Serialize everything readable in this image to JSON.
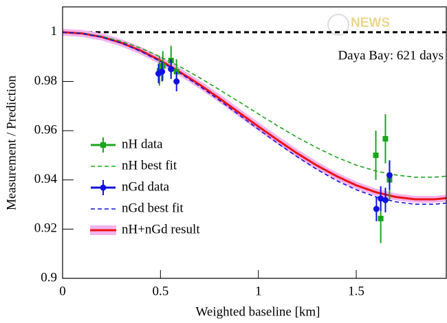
{
  "chart_data": {
    "type": "line",
    "annotation": "Daya Bay: 621 days",
    "watermark": "NEWS",
    "xlabel": "Weighted baseline [km]",
    "ylabel": "Measurement / Prediction",
    "xlim": [
      0,
      1.96
    ],
    "ylim": [
      0.9,
      1.0103
    ],
    "xticks": [
      0,
      0.5,
      1,
      1.5
    ],
    "yticks": [
      0.9,
      0.92,
      0.94,
      0.96,
      0.98,
      1
    ],
    "reference_line": 1,
    "series": [
      {
        "name": "nH data",
        "color": "#1aa51a",
        "style": "points",
        "marker": "square",
        "x": [
          0.495,
          0.512,
          0.554,
          0.582,
          1.6,
          1.625,
          1.649,
          1.67
        ],
        "values": [
          0.9843,
          0.9863,
          0.9885,
          0.984,
          0.95,
          0.9243,
          0.9567,
          0.94
        ],
        "yerr": [
          0.006,
          0.006,
          0.006,
          0.005,
          0.01,
          0.01,
          0.01,
          0.008
        ]
      },
      {
        "name": "nH best fit",
        "color": "#1aa51a",
        "style": "dashed",
        "x": [
          0,
          0.1,
          0.2,
          0.3,
          0.4,
          0.5,
          0.6,
          0.7,
          0.8,
          0.9,
          1,
          1.1,
          1.2,
          1.3,
          1.4,
          1.5,
          1.6,
          1.7,
          1.8,
          1.9,
          1.96
        ],
        "values": [
          1,
          0.9996,
          0.9983,
          0.9963,
          0.9935,
          0.99,
          0.986,
          0.9815,
          0.9767,
          0.9718,
          0.9668,
          0.9619,
          0.9572,
          0.953,
          0.9492,
          0.946,
          0.9436,
          0.942,
          0.9411,
          0.9411,
          0.9415
        ]
      },
      {
        "name": "nGd data",
        "color": "#1010e0",
        "style": "points",
        "marker": "circle",
        "x": [
          0.49,
          0.508,
          0.554,
          0.582,
          1.603,
          1.625,
          1.649,
          1.67
        ],
        "values": [
          0.9832,
          0.984,
          0.985,
          0.98,
          0.9282,
          0.9324,
          0.9318,
          0.9419
        ],
        "yerr": [
          0.004,
          0.004,
          0.004,
          0.004,
          0.005,
          0.005,
          0.005,
          0.006
        ]
      },
      {
        "name": "nGd best fit",
        "color": "#1010e0",
        "style": "dashed",
        "x": [
          0,
          0.1,
          0.2,
          0.3,
          0.4,
          0.5,
          0.6,
          0.7,
          0.8,
          0.9,
          1,
          1.1,
          1.2,
          1.3,
          1.4,
          1.5,
          1.6,
          1.7,
          1.8,
          1.9,
          1.96
        ],
        "values": [
          1,
          0.9995,
          0.998,
          0.9956,
          0.9922,
          0.9881,
          0.9834,
          0.9781,
          0.9724,
          0.9665,
          0.9606,
          0.9548,
          0.9493,
          0.9442,
          0.9397,
          0.936,
          0.9331,
          0.9311,
          0.9301,
          0.9301,
          0.9306
        ]
      },
      {
        "name": "nH+nGd result",
        "color": "#ee1111",
        "style": "band",
        "x": [
          0,
          0.1,
          0.2,
          0.3,
          0.4,
          0.5,
          0.6,
          0.7,
          0.8,
          0.9,
          1,
          1.1,
          1.2,
          1.3,
          1.4,
          1.5,
          1.6,
          1.7,
          1.8,
          1.9,
          1.96
        ],
        "values": [
          1,
          0.9995,
          0.9981,
          0.9957,
          0.9925,
          0.9885,
          0.9838,
          0.9787,
          0.9732,
          0.9674,
          0.9617,
          0.9561,
          0.9507,
          0.9458,
          0.9415,
          0.9378,
          0.935,
          0.9331,
          0.9321,
          0.9321,
          0.9326
        ]
      }
    ]
  }
}
